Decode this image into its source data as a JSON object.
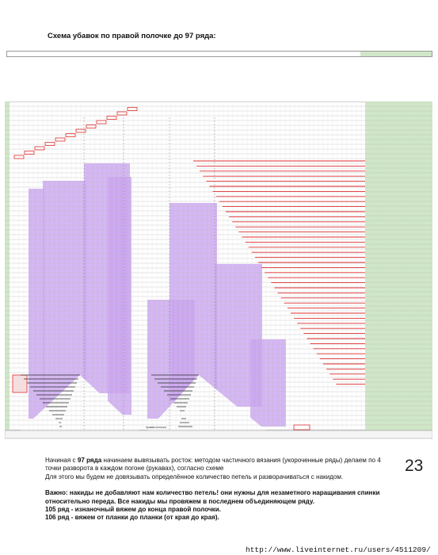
{
  "title": "Схема убавок по правой полочке до 97 ряда:",
  "page_number": "23",
  "chart_axis_label": "правая полочка",
  "paragraph1": {
    "part1": "Начиная с ",
    "highlight": "97 ряда",
    "part2": " начинаем вывязывать росток: методом частичного вязания (укороченные ряды) делаем по 4 точки разворота в каждом погоне (рукавах), согласно схеме",
    "line2": "Для этого мы будем не довязывать определённое количество петель и разворачиваться с накидом."
  },
  "paragraph2": {
    "important": "Важно: накиды не добавляют нам количество петель! они нужны для незаметного наращивания спинки относительно переда. Все накиды мы провяжем в последнем объединяющем ряду.",
    "row105": "105 ряд - изнаночный вяжем до конца правой полочки.",
    "row106": "106 ряд - вяжем от планки до планки (от края до края)."
  },
  "footer_url": "http://www.liveinternet.ru/users/4511209/",
  "colors": {
    "grid": "#b8b8b8",
    "purple": "#c9a3f0",
    "red": "#e03030",
    "green": "#cfe7c6",
    "pink": "#f5dede",
    "dark_line": "#2a2a2a"
  }
}
